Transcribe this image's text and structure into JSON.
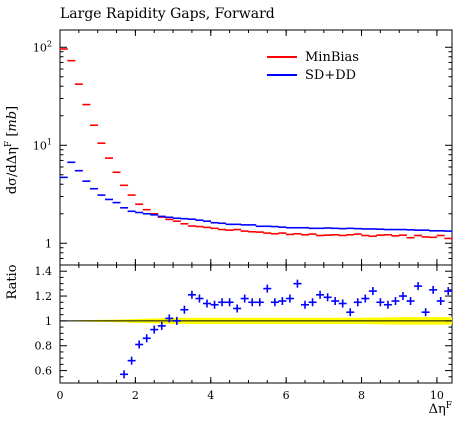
{
  "chart_data": [
    {
      "type": "scatter",
      "title": "Large Rapidity Gaps, Forward",
      "xlabel": "Δη^F",
      "ylabel": "dσ/dΔη^F [mb]",
      "yscale": "log",
      "xlim": [
        0,
        10.4
      ],
      "ylim": [
        0.6,
        150
      ],
      "x_ticks": [
        0,
        2,
        4,
        6,
        8,
        10
      ],
      "y_ticks": [
        {
          "value": 1,
          "label": "1"
        },
        {
          "value": 10,
          "label": "10^1"
        },
        {
          "value": 100,
          "label": "10^2"
        }
      ],
      "legend_position": "top-right",
      "x": [
        0.1,
        0.3,
        0.5,
        0.7,
        0.9,
        1.1,
        1.3,
        1.5,
        1.7,
        1.9,
        2.1,
        2.3,
        2.5,
        2.7,
        2.9,
        3.1,
        3.3,
        3.5,
        3.7,
        3.9,
        4.1,
        4.3,
        4.5,
        4.7,
        4.9,
        5.1,
        5.3,
        5.5,
        5.7,
        5.9,
        6.1,
        6.3,
        6.5,
        6.7,
        6.9,
        7.1,
        7.3,
        7.5,
        7.7,
        7.9,
        8.1,
        8.3,
        8.5,
        8.7,
        8.9,
        9.1,
        9.3,
        9.5,
        9.7,
        9.9,
        10.1,
        10.3
      ],
      "series": [
        {
          "name": "MinBias",
          "color": "#ff0000",
          "values": [
            96,
            73,
            42,
            26,
            16,
            10.5,
            7.4,
            5.3,
            3.9,
            3.1,
            2.5,
            2.2,
            2.0,
            1.85,
            1.75,
            1.68,
            1.58,
            1.5,
            1.48,
            1.45,
            1.42,
            1.38,
            1.36,
            1.38,
            1.33,
            1.31,
            1.3,
            1.27,
            1.25,
            1.27,
            1.23,
            1.25,
            1.22,
            1.24,
            1.2,
            1.21,
            1.22,
            1.2,
            1.22,
            1.24,
            1.2,
            1.18,
            1.21,
            1.22,
            1.19,
            1.21,
            1.14,
            1.2,
            1.16,
            1.15,
            1.2,
            1.12
          ]
        },
        {
          "name": "SD+DD",
          "color": "#0000ff",
          "values": [
            4.7,
            6.7,
            5.5,
            4.3,
            3.6,
            3.1,
            2.8,
            2.6,
            2.3,
            2.12,
            2.06,
            2.0,
            1.95,
            1.88,
            1.84,
            1.8,
            1.78,
            1.76,
            1.72,
            1.68,
            1.62,
            1.6,
            1.56,
            1.56,
            1.54,
            1.54,
            1.49,
            1.49,
            1.48,
            1.46,
            1.44,
            1.44,
            1.44,
            1.42,
            1.42,
            1.43,
            1.42,
            1.41,
            1.42,
            1.41,
            1.4,
            1.4,
            1.39,
            1.38,
            1.38,
            1.38,
            1.37,
            1.36,
            1.36,
            1.34,
            1.34,
            1.33
          ]
        }
      ]
    },
    {
      "type": "scatter",
      "xlabel": "Δη^F",
      "ylabel": "Ratio",
      "xlim": [
        0,
        10.4
      ],
      "ylim": [
        0.5,
        1.45
      ],
      "x_ticks": [
        0,
        2,
        4,
        6,
        8,
        10
      ],
      "y_ticks": [
        0.6,
        0.8,
        1,
        1.2,
        1.4
      ],
      "y_tick_labels": [
        "0.6",
        "0.8",
        "1",
        "1.2",
        "1.4"
      ],
      "reference_line": 1,
      "band_color": "#ffff00",
      "band_x": [
        0,
        0.5,
        1.0,
        1.5,
        2.0,
        2.5,
        3.0,
        3.5,
        4.0,
        5.0,
        6.0,
        7.0,
        8.0,
        9.0,
        10.0,
        10.4
      ],
      "band_half_width": [
        0.0,
        0.005,
        0.008,
        0.01,
        0.015,
        0.02,
        0.025,
        0.025,
        0.025,
        0.025,
        0.025,
        0.025,
        0.025,
        0.03,
        0.03,
        0.03
      ],
      "series": [
        {
          "name": "SD+DD",
          "color": "#0000ff",
          "x": [
            1.7,
            1.9,
            2.1,
            2.3,
            2.5,
            2.7,
            2.9,
            3.1,
            3.3,
            3.5,
            3.7,
            3.9,
            4.1,
            4.3,
            4.5,
            4.7,
            4.9,
            5.1,
            5.3,
            5.5,
            5.7,
            5.9,
            6.1,
            6.3,
            6.5,
            6.7,
            6.9,
            7.1,
            7.3,
            7.5,
            7.7,
            7.9,
            8.1,
            8.3,
            8.5,
            8.7,
            8.9,
            9.1,
            9.3,
            9.5,
            9.7,
            9.9,
            10.1,
            10.3
          ],
          "values": [
            0.57,
            0.68,
            0.81,
            0.86,
            0.93,
            0.96,
            1.02,
            1.0,
            1.09,
            1.21,
            1.18,
            1.14,
            1.13,
            1.15,
            1.15,
            1.1,
            1.18,
            1.15,
            1.15,
            1.26,
            1.15,
            1.16,
            1.18,
            1.3,
            1.13,
            1.15,
            1.21,
            1.19,
            1.16,
            1.14,
            1.07,
            1.15,
            1.18,
            1.24,
            1.15,
            1.13,
            1.16,
            1.2,
            1.16,
            1.28,
            1.07,
            1.25,
            1.16,
            1.24
          ]
        }
      ]
    }
  ]
}
